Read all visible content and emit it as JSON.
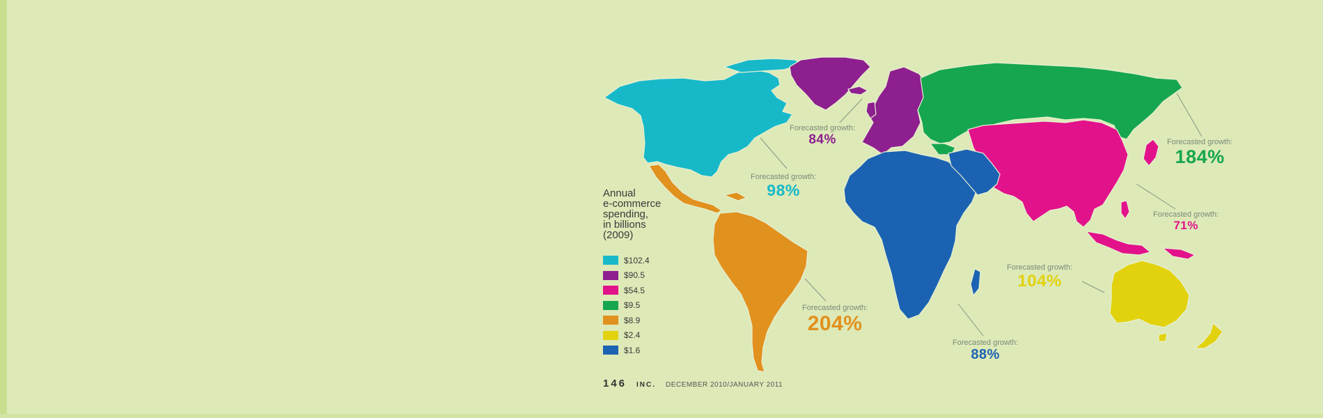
{
  "legend": {
    "title_lines": [
      "Annual",
      "e-commerce",
      "spending,",
      "in billions",
      "(2009)"
    ],
    "items": [
      {
        "value": "$102.4",
        "color": "#17b9c9"
      },
      {
        "value": "$90.5",
        "color": "#8e1f8f"
      },
      {
        "value": "$54.5",
        "color": "#e2128a"
      },
      {
        "value": "$9.5",
        "color": "#16a64f"
      },
      {
        "value": "$8.9",
        "color": "#e1911e"
      },
      {
        "value": "$2.4",
        "color": "#e2d20d"
      },
      {
        "value": "$1.6",
        "color": "#1b63b2"
      }
    ]
  },
  "regions": [
    {
      "name": "North America",
      "color": "#17b9c9",
      "spending": "$102.4",
      "growth_label": "Forecasted growth:",
      "growth": "98%"
    },
    {
      "name": "Europe",
      "color": "#8e1f8f",
      "spending": "$90.5",
      "growth_label": "Forecasted growth:",
      "growth": "84%"
    },
    {
      "name": "Asia",
      "color": "#e2128a",
      "spending": "$54.5",
      "growth_label": "Forecasted growth:",
      "growth": "71%"
    },
    {
      "name": "Russia",
      "color": "#16a64f",
      "spending": "$9.5",
      "growth_label": "Forecasted growth:",
      "growth": "184%"
    },
    {
      "name": "South America",
      "color": "#e1911e",
      "spending": "$8.9",
      "growth_label": "Forecasted growth:",
      "growth": "204%"
    },
    {
      "name": "Australia",
      "color": "#e2d20d",
      "spending": "$2.4",
      "growth_label": "Forecasted growth:",
      "growth": "104%"
    },
    {
      "name": "Africa and Middle East",
      "color": "#1b63b2",
      "spending": "$1.6",
      "growth_label": "Forecasted growth:",
      "growth": "88%"
    }
  ],
  "footer": {
    "page_number": "146",
    "magazine": "INC.",
    "issue": "DECEMBER 2010/JANUARY 2011"
  }
}
